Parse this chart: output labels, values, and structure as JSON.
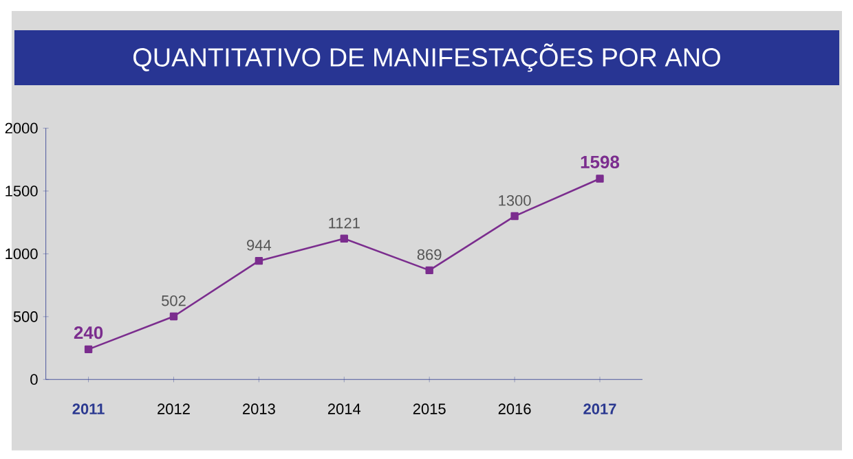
{
  "chart_data": {
    "type": "line",
    "title": "QUANTITATIVO DE MANIFESTAÇÕES POR ANO",
    "categories": [
      "2011",
      "2012",
      "2013",
      "2014",
      "2015",
      "2016",
      "2017"
    ],
    "values": [
      240,
      502,
      944,
      1121,
      869,
      1300,
      1598
    ],
    "color": "#7b2d8e",
    "marker": "square",
    "data_labels": true,
    "ylim": [
      0,
      2000
    ],
    "yticks": [
      0,
      500,
      1000,
      1500,
      2000
    ]
  }
}
